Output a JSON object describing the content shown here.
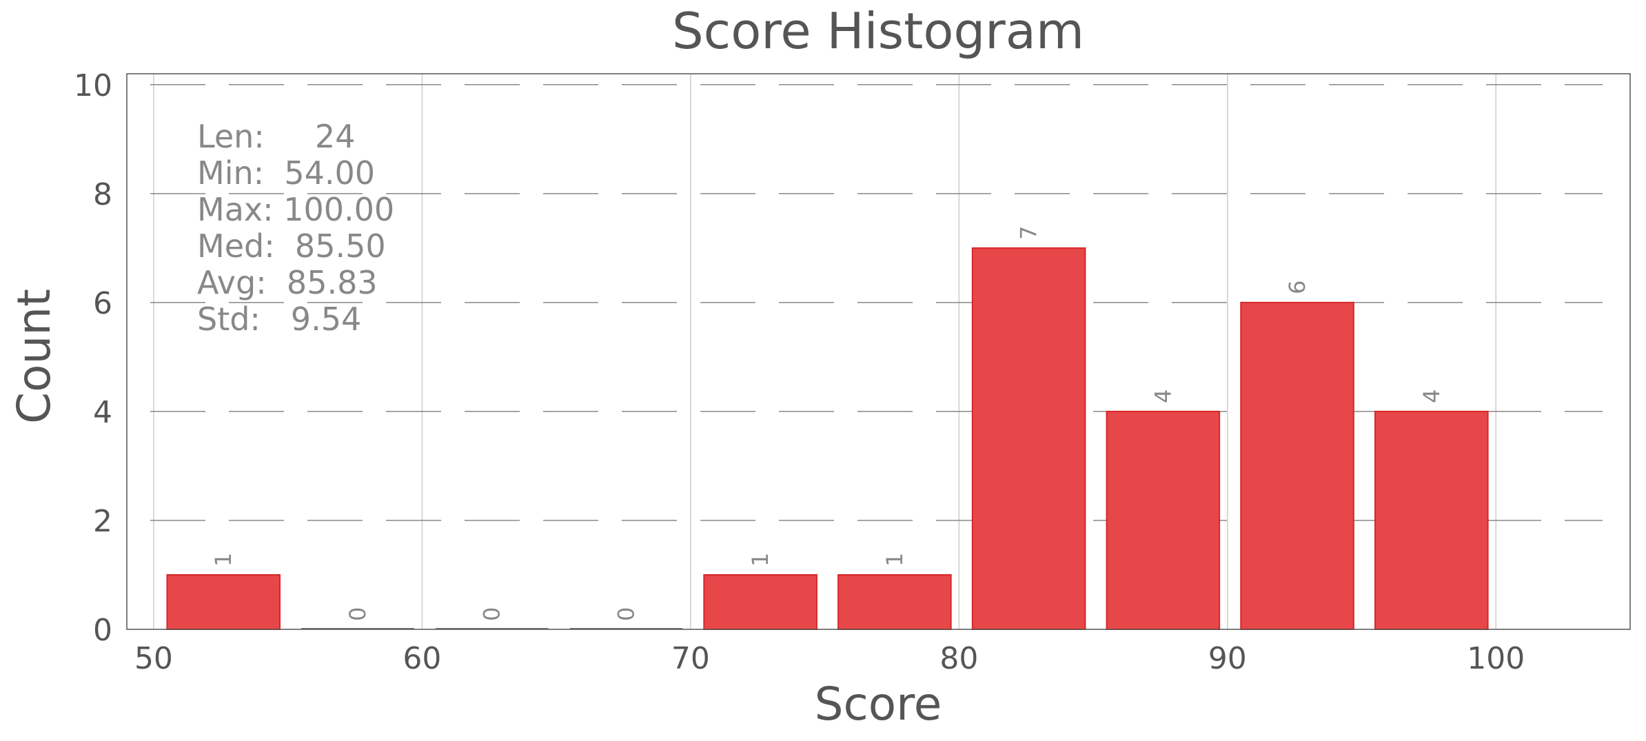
{
  "chart_data": {
    "type": "bar",
    "title": "Score Histogram",
    "xlabel": "Score",
    "ylabel": "Count",
    "bin_width": 5,
    "bins": [
      {
        "start": 50,
        "end": 55,
        "count": 1
      },
      {
        "start": 55,
        "end": 60,
        "count": 0
      },
      {
        "start": 60,
        "end": 65,
        "count": 0
      },
      {
        "start": 65,
        "end": 70,
        "count": 0
      },
      {
        "start": 70,
        "end": 75,
        "count": 1
      },
      {
        "start": 75,
        "end": 80,
        "count": 1
      },
      {
        "start": 80,
        "end": 85,
        "count": 7
      },
      {
        "start": 85,
        "end": 90,
        "count": 4
      },
      {
        "start": 90,
        "end": 95,
        "count": 6
      },
      {
        "start": 95,
        "end": 100,
        "count": 4
      }
    ],
    "xlim": [
      49,
      105
    ],
    "ylim": [
      0,
      10.2
    ],
    "xticks": [
      50,
      60,
      70,
      80,
      90,
      100
    ],
    "yticks": [
      0,
      2,
      4,
      6,
      8,
      10
    ],
    "grid": true,
    "bar_color": "#e8474a",
    "bar_edge_color": "#d62728",
    "stats_lines": [
      "Len:     24",
      "Min:  54.00",
      "Max: 100.00",
      "Med:  85.50",
      "Avg:  85.83",
      "Std:   9.54"
    ]
  }
}
